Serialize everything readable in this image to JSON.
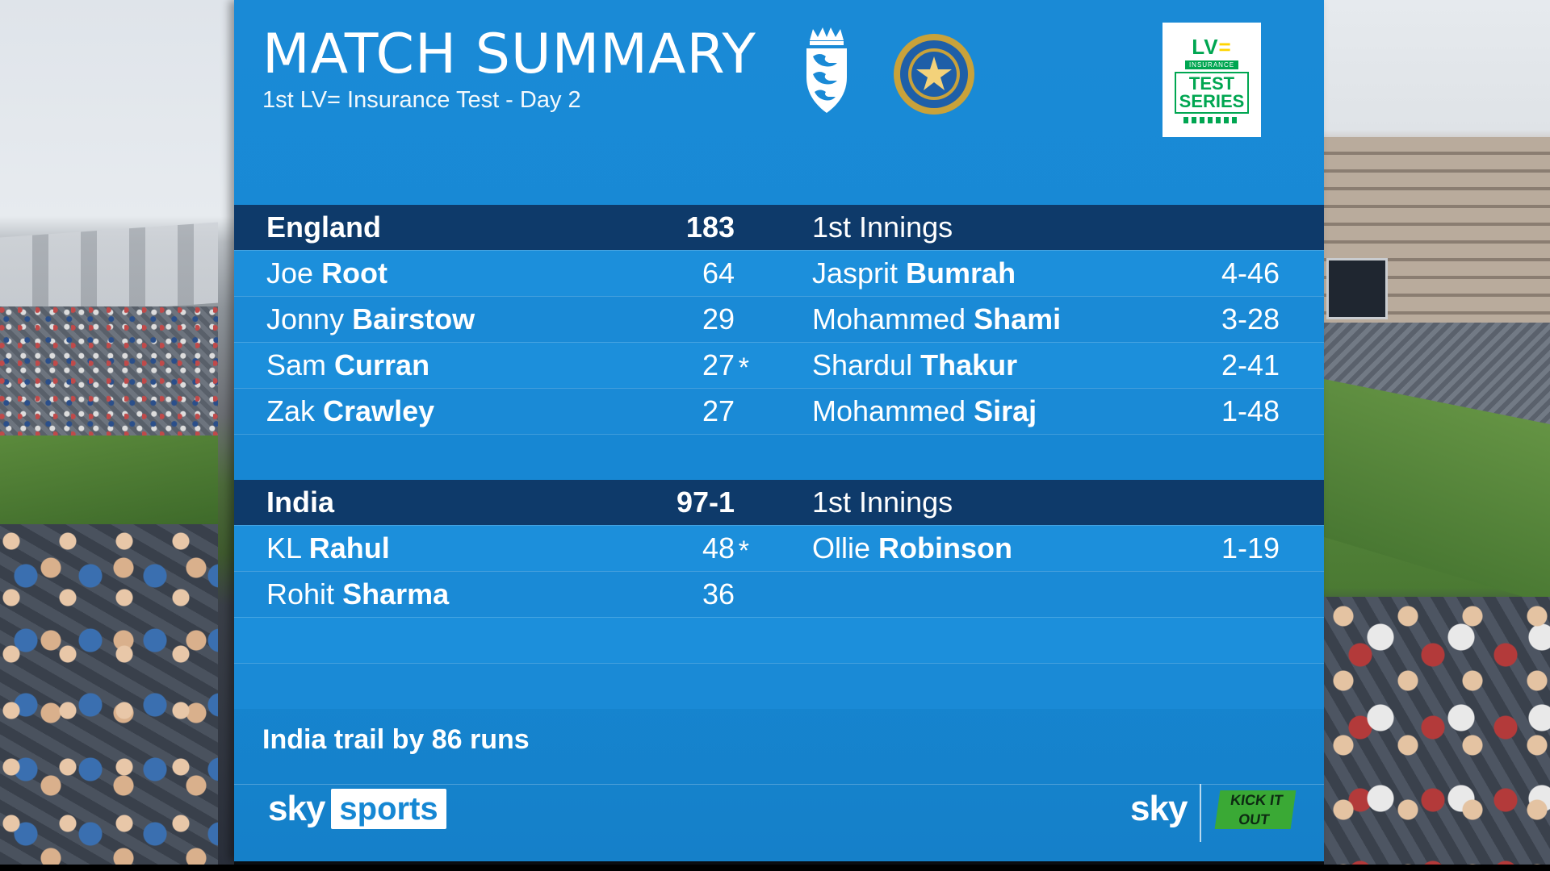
{
  "header": {
    "title": "MATCH SUMMARY",
    "subtitle": "1st LV= Insurance Test - Day 2"
  },
  "sponsor_logo": {
    "text": "LV= INSURANCE TEST SERIES"
  },
  "england": {
    "team": "England",
    "score": "183",
    "innings": "1st Innings",
    "batters": [
      {
        "first": "Joe",
        "last": "Root",
        "runs": "64",
        "not_out": false
      },
      {
        "first": "Jonny",
        "last": "Bairstow",
        "runs": "29",
        "not_out": false
      },
      {
        "first": "Sam",
        "last": "Curran",
        "runs": "27",
        "not_out": true
      },
      {
        "first": "Zak",
        "last": "Crawley",
        "runs": "27",
        "not_out": false
      }
    ],
    "bowlers": [
      {
        "first": "Jasprit",
        "last": "Bumrah",
        "figures": "4-46"
      },
      {
        "first": "Mohammed",
        "last": "Shami",
        "figures": "3-28"
      },
      {
        "first": "Shardul",
        "last": "Thakur",
        "figures": "2-41"
      },
      {
        "first": "Mohammed",
        "last": "Siraj",
        "figures": "1-48"
      }
    ]
  },
  "india": {
    "team": "India",
    "score": "97-1",
    "innings": "1st Innings",
    "batters": [
      {
        "first": "KL",
        "last": "Rahul",
        "runs": "48",
        "not_out": true
      },
      {
        "first": "Rohit",
        "last": "Sharma",
        "runs": "36",
        "not_out": false
      }
    ],
    "bowlers": [
      {
        "first": "Ollie",
        "last": "Robinson",
        "figures": "1-19"
      }
    ]
  },
  "summary_line": "India trail by 86 runs",
  "footer": {
    "sky_word": "sky",
    "sports_word": "sports",
    "sky_right": "sky",
    "kick_it_out": "KICK IT OUT"
  },
  "not_out_marker": "*",
  "colors": {
    "panel_blue": "#1a8ad6",
    "header_navy": "#0e3a6a",
    "text_white": "#ffffff",
    "sponsor_green": "#00a651"
  },
  "icons": [
    "england-crest-icon",
    "india-crest-icon"
  ]
}
